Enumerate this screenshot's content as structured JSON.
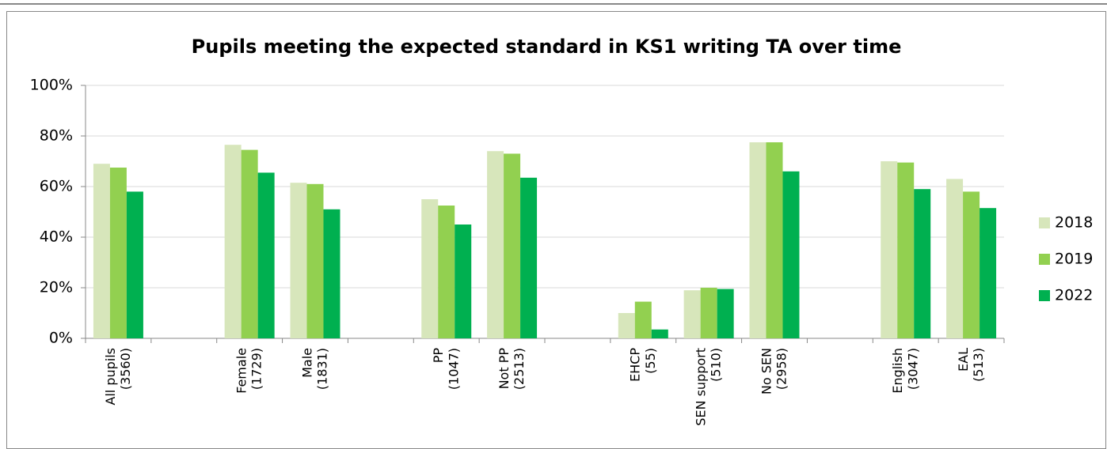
{
  "chart_data": {
    "type": "bar",
    "title": "Pupils meeting the expected standard in KS1 writing TA over time",
    "categories": [
      "All pupils\n(3560)",
      null,
      "Female\n(1729)",
      "Male\n(1831)",
      null,
      "PP\n(1047)",
      "Not PP\n(2513)",
      null,
      "EHCP\n(55)",
      "SEN support\n(510)",
      "No SEN\n(2958)",
      null,
      "English\n(3047)",
      "EAL\n(513)"
    ],
    "series": [
      {
        "name": "2018",
        "color": "#d7e6bb",
        "values": [
          69,
          null,
          76.5,
          61.5,
          null,
          55,
          74,
          null,
          10,
          19,
          77.5,
          null,
          70,
          63
        ]
      },
      {
        "name": "2019",
        "color": "#92d050",
        "values": [
          67.5,
          null,
          74.5,
          61,
          null,
          52.5,
          73,
          null,
          14.5,
          20,
          77.5,
          null,
          69.5,
          58
        ]
      },
      {
        "name": "2022",
        "color": "#00b050",
        "values": [
          58,
          null,
          65.5,
          51,
          null,
          45,
          63.5,
          null,
          3.5,
          19.5,
          66,
          null,
          59,
          51.5
        ]
      }
    ],
    "ylim": [
      0,
      100
    ],
    "yticks": [
      {
        "value": 0,
        "label": "0%"
      },
      {
        "value": 20,
        "label": "20%"
      },
      {
        "value": 40,
        "label": "40%"
      },
      {
        "value": 60,
        "label": "60%"
      },
      {
        "value": 80,
        "label": "80%"
      },
      {
        "value": 100,
        "label": "100%"
      }
    ],
    "grid": true,
    "legend": "right"
  }
}
